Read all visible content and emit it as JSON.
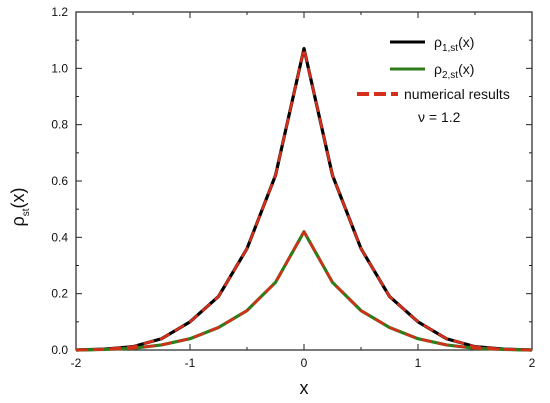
{
  "chart_data": {
    "type": "line",
    "xlabel": "x",
    "ylabel_main": "ρ",
    "ylabel_sub": "st",
    "ylabel_arg": "(x)",
    "xlim": [
      -2,
      2
    ],
    "ylim": [
      0,
      1.2
    ],
    "x_ticks": [
      "-2",
      "-1",
      "0",
      "1",
      "2"
    ],
    "y_ticks": [
      "0.0",
      "0.2",
      "0.4",
      "0.6",
      "0.8",
      "1.0",
      "1.2"
    ],
    "grid": false,
    "legend_position": "top-right",
    "series": [
      {
        "name_main": "ρ",
        "name_sub": "1,st",
        "name_arg": "(x)",
        "color": "#000000",
        "dash": false,
        "x": [
          -2.0,
          -1.75,
          -1.5,
          -1.25,
          -1.0,
          -0.75,
          -0.5,
          -0.25,
          0.0,
          0.25,
          0.5,
          0.75,
          1.0,
          1.25,
          1.5,
          1.75,
          2.0
        ],
        "y": [
          0.0,
          0.003,
          0.012,
          0.04,
          0.1,
          0.19,
          0.36,
          0.62,
          1.07,
          0.62,
          0.36,
          0.19,
          0.1,
          0.04,
          0.012,
          0.003,
          0.0
        ]
      },
      {
        "name_main": "ρ",
        "name_sub": "2,st",
        "name_arg": "(x)",
        "color": "#2e7d1a",
        "dash": false,
        "x": [
          -2.0,
          -1.75,
          -1.5,
          -1.25,
          -1.0,
          -0.75,
          -0.5,
          -0.25,
          0.0,
          0.25,
          0.5,
          0.75,
          1.0,
          1.25,
          1.5,
          1.75,
          2.0
        ],
        "y": [
          0.0,
          0.002,
          0.006,
          0.018,
          0.04,
          0.08,
          0.14,
          0.24,
          0.42,
          0.24,
          0.14,
          0.08,
          0.04,
          0.018,
          0.006,
          0.002,
          0.0
        ]
      },
      {
        "name": "numerical results",
        "color": "#d32f1a",
        "dash": true,
        "x": [
          -2.0,
          -1.75,
          -1.5,
          -1.25,
          -1.0,
          -0.75,
          -0.5,
          -0.25,
          0.0,
          0.25,
          0.5,
          0.75,
          1.0,
          1.25,
          1.5,
          1.75,
          2.0
        ],
        "y": [
          0.0,
          0.003,
          0.012,
          0.04,
          0.1,
          0.19,
          0.36,
          0.62,
          1.07,
          0.62,
          0.36,
          0.19,
          0.1,
          0.04,
          0.012,
          0.003,
          0.0
        ],
        "y2": [
          0.0,
          0.002,
          0.006,
          0.018,
          0.04,
          0.08,
          0.14,
          0.24,
          0.42,
          0.24,
          0.14,
          0.08,
          0.04,
          0.018,
          0.006,
          0.002,
          0.0
        ]
      }
    ],
    "annotation": "ν = 1.2"
  }
}
